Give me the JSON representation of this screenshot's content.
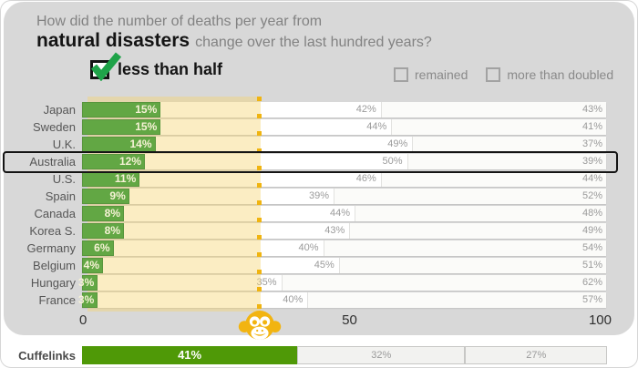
{
  "header": {
    "question_line1": "How did the number of deaths per year from",
    "question_bold": "natural disasters",
    "question_rest": "change over the last hundred years?"
  },
  "answer": {
    "label": "less than half",
    "checked": true
  },
  "legend": {
    "options": [
      {
        "label": "remained",
        "checked": false
      },
      {
        "label": "more than doubled",
        "checked": false
      }
    ]
  },
  "chart_data": {
    "type": "bar",
    "orientation": "horizontal",
    "stacked": true,
    "xlim": [
      0,
      100
    ],
    "x_ticks": [
      "0",
      "50",
      "100"
    ],
    "chance_marker_pct": 33,
    "highlighted_category": "Australia",
    "categories": [
      "Japan",
      "Sweden",
      "U.K.",
      "Australia",
      "U.S.",
      "Spain",
      "Canada",
      "Korea S.",
      "Germany",
      "Belgium",
      "Hungary",
      "France"
    ],
    "series": [
      {
        "name": "less than half",
        "values": [
          15,
          15,
          14,
          12,
          11,
          9,
          8,
          8,
          6,
          4,
          3,
          3
        ]
      },
      {
        "name": "remained",
        "values": [
          42,
          44,
          49,
          50,
          46,
          39,
          44,
          43,
          40,
          45,
          35,
          40
        ]
      },
      {
        "name": "more than doubled",
        "values": [
          43,
          41,
          37,
          39,
          44,
          52,
          48,
          49,
          54,
          51,
          62,
          57
        ]
      }
    ],
    "footer_row": {
      "label": "Cuffelinks",
      "values": [
        41,
        32,
        27
      ]
    }
  },
  "colors": {
    "card_bg": "#d8d8d8",
    "bar_green": "#62a744",
    "footer_green": "#4f9907",
    "gold": "#f2b411",
    "check_green": "#1fa349",
    "tan_band": "rgba(245,213,112,0.42)",
    "pct_gray": "#9b9b9b"
  },
  "icons": {
    "answer_check": "checkmark-icon",
    "chance_marker": "monkey-icon"
  }
}
